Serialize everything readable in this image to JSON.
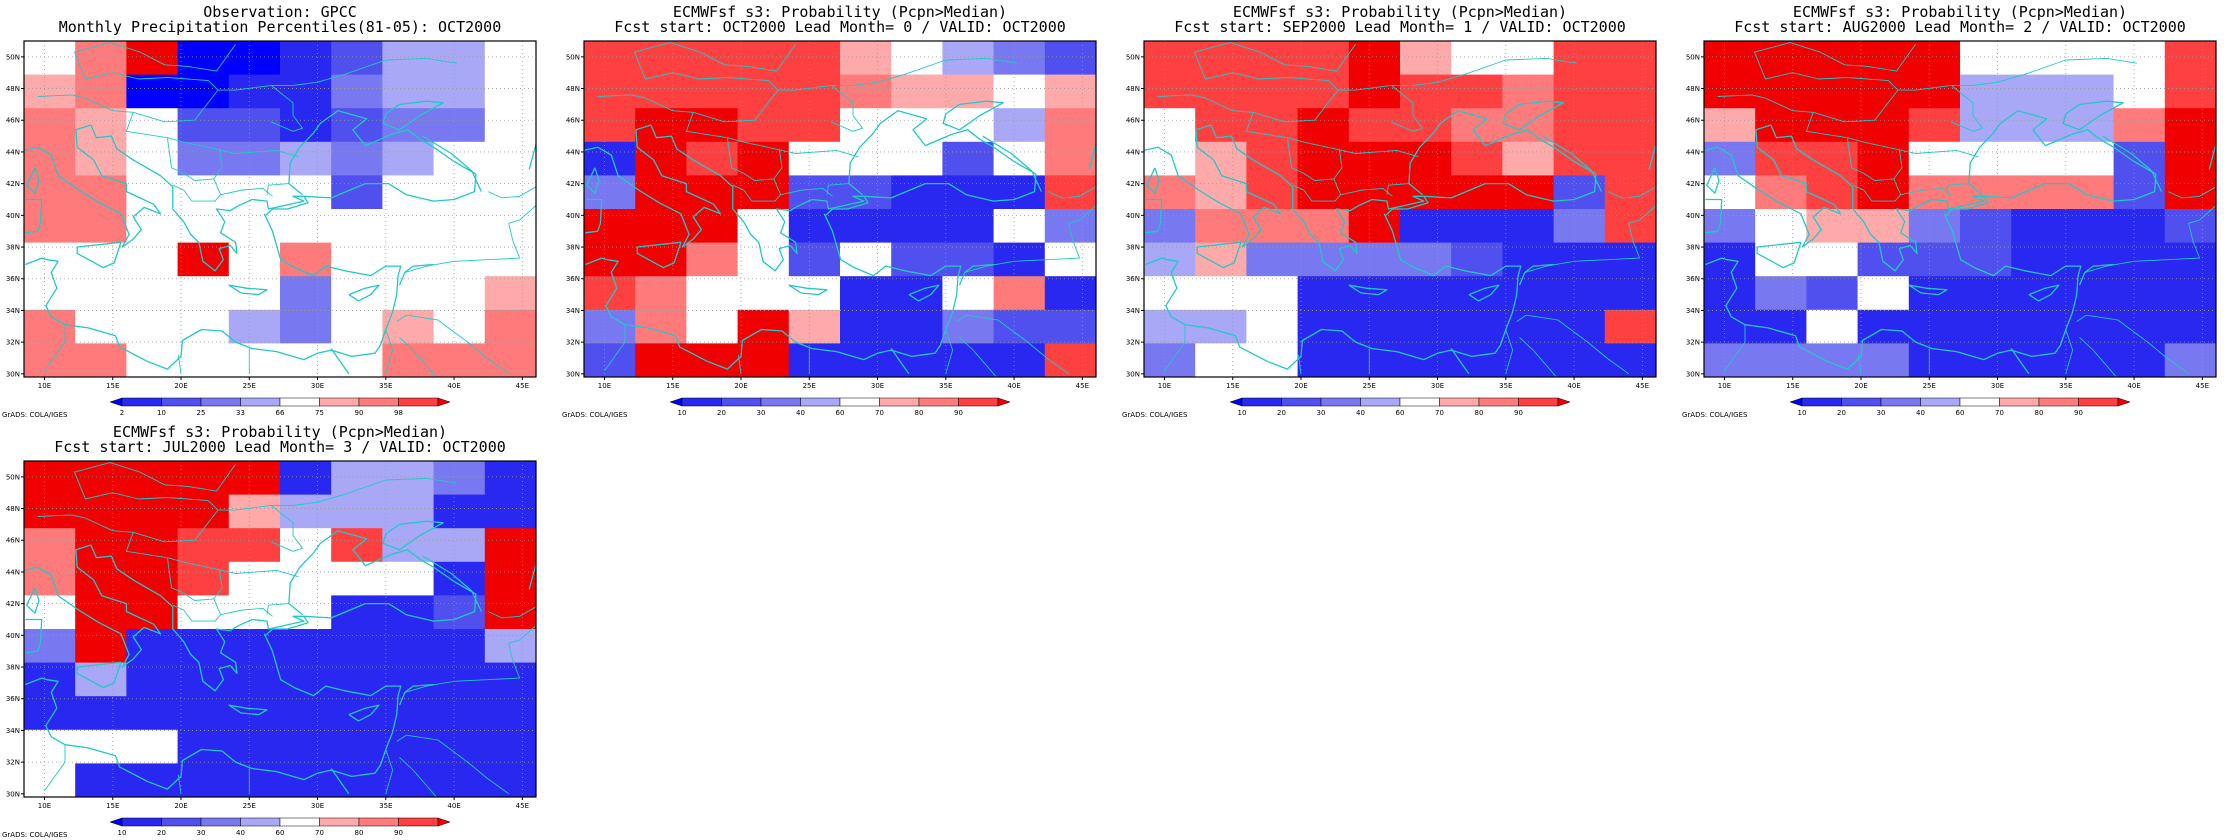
{
  "figure": {
    "latitude_labels": [
      "50N",
      "48N",
      "46N",
      "44N",
      "42N",
      "40N",
      "38N",
      "36N",
      "34N",
      "32N",
      "30N"
    ],
    "longitude_labels": [
      "10E",
      "15E",
      "20E",
      "25E",
      "30E",
      "35E",
      "40E",
      "45E"
    ],
    "credit": "GrADS: COLA/IGES",
    "colors": {
      "land_outline": "#22c8c8",
      "palette": [
        "#0000ff",
        "#2828f0",
        "#5050ee",
        "#7878f0",
        "#a8a8f6",
        "#ffffff",
        "#ffaaaa",
        "#ff7a7a",
        "#ff4040",
        "#f00000"
      ]
    }
  },
  "panels": [
    {
      "title_line1": "Observation: GPCC",
      "title_line2": "Monthly Precipitation Percentiles(81-05): OCT2000",
      "colorbar_labels": [
        "2",
        "10",
        "25",
        "33",
        "66",
        "75",
        "90",
        "98"
      ],
      "grid": [
        "5790012445",
        "6700113445",
        "7652212335",
        "7653343455",
        "7755552555",
        "7755555555",
        "5559575555",
        "5555535556",
        "7555435657",
        "7755555777"
      ]
    },
    {
      "title_line1": "ECMWFsf s3: Probability (Pcpn>Median)",
      "title_line2": "Fcst start: OCT2000  Lead Month= 0 / VALID: OCT2000",
      "colorbar_labels": [
        "10",
        "20",
        "30",
        "40",
        "60",
        "70",
        "80",
        "90"
      ],
      "grid": [
        "8888865432",
        "8888876656",
        "8998855547",
        "1989555257",
        "3999221118",
        "9995111153",
        "9975252215",
        "8755511571",
        "3759611322",
        "2999111118"
      ]
    },
    {
      "title_line1": "ECMWFsf s3: Probability (Pcpn>Median)",
      "title_line2": "Fcst start: SEP2000  Lead Month= 1 / VALID: OCT2000",
      "colorbar_labels": [
        "10",
        "20",
        "30",
        "40",
        "60",
        "70",
        "80",
        "90"
      ],
      "grid": [
        "8888965588",
        "8888988788",
        "5889887788",
        "5689998688",
        "7689999928",
        "3777911138",
        "4633332111",
        "5551111111",
        "4451111118",
        "3551111111"
      ]
    },
    {
      "title_line1": "ECMWFsf s3: Probability (Pcpn>Median)",
      "title_line2": "Fcst start: AUG2000  Lead Month= 2 / VALID: OCT2000",
      "colorbar_labels": [
        "10",
        "20",
        "30",
        "40",
        "60",
        "70",
        "80",
        "90"
      ],
      "grid": [
        "9999955558",
        "9999944458",
        "6999844479",
        "3889555529",
        "5789777729",
        "3566321112",
        "1552221111",
        "1325111111",
        "1151111111",
        "3333111113"
      ]
    },
    {
      "title_line1": "ECMWFsf s3: Probability (Pcpn>Median)",
      "title_line2": "Fcst start: JUL2000  Lead Month= 3 / VALID: OCT2000",
      "colorbar_labels": [
        "10",
        "20",
        "30",
        "40",
        "60",
        "70",
        "80",
        "90"
      ],
      "grid": [
        "9999914431",
        "9999644411",
        "7998858449",
        "7998555519",
        "5995551129",
        "3911111114",
        "1411111111",
        "1111111111",
        "5551111111",
        "5111111111"
      ]
    }
  ]
}
